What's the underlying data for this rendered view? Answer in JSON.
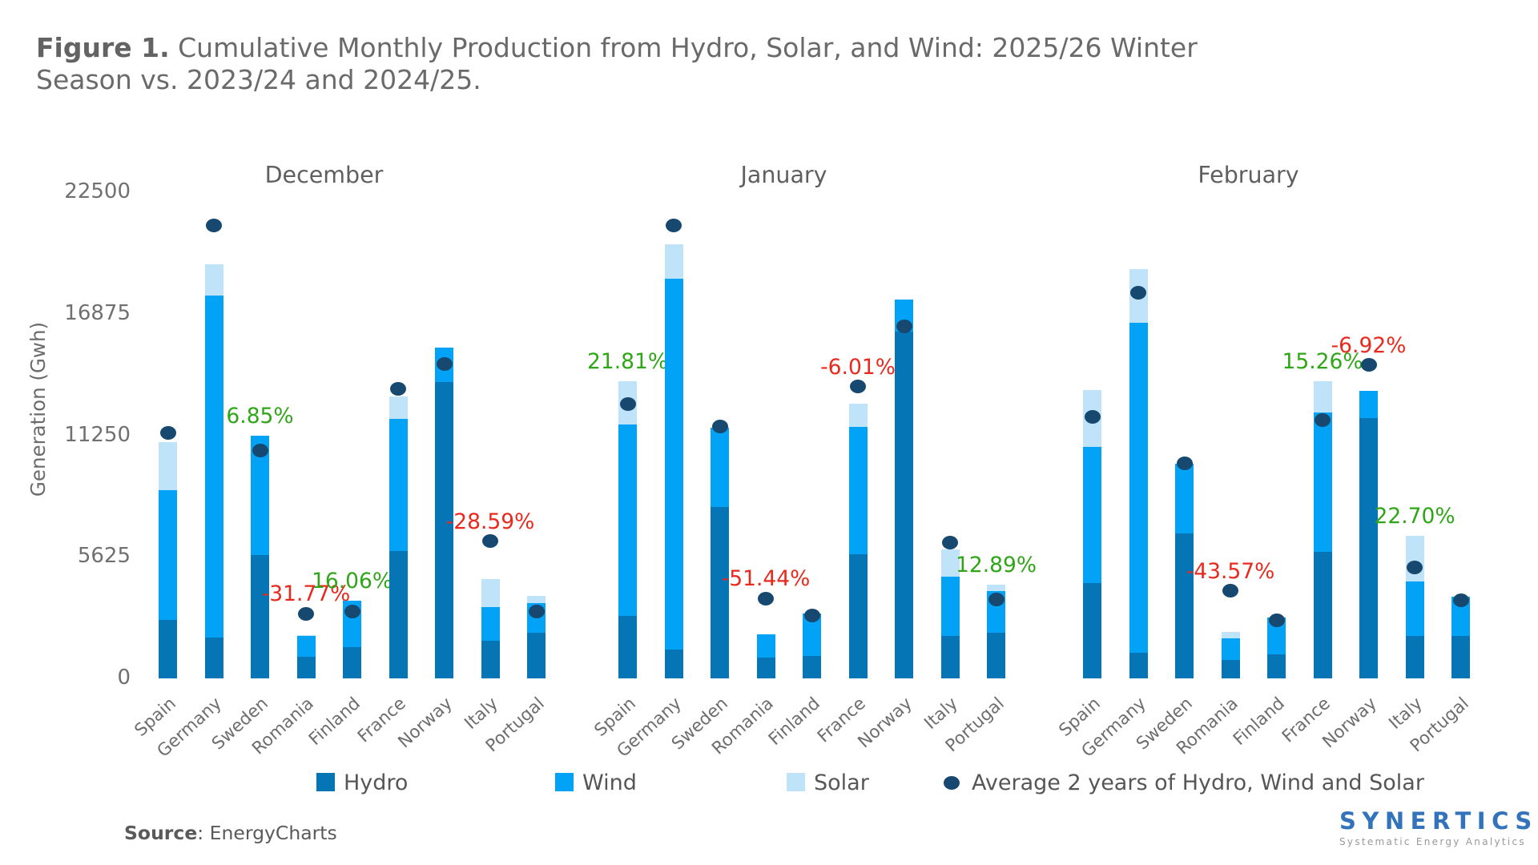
{
  "title": {
    "prefix": "Figure 1.",
    "rest": " Cumulative Monthly Production from Hydro, Solar, and Wind: 2025/26 Winter Season vs. 2023/24 and 2024/25."
  },
  "y_axis": {
    "label": "Generation (Gwh)",
    "ticks": [
      22500,
      16875,
      11250,
      5625,
      0
    ],
    "max": 22500
  },
  "legend": {
    "items": [
      {
        "swatch": "hydro",
        "label": "Hydro"
      },
      {
        "swatch": "wind",
        "label": "Wind"
      },
      {
        "swatch": "solar",
        "label": "Solar"
      },
      {
        "swatch": "dot",
        "label": "Average 2 years of Hydro, Wind and Solar"
      }
    ]
  },
  "source": {
    "label": "Source",
    "value": ": EnergyCharts"
  },
  "logo": {
    "name": "SYNERTICS",
    "tagline": "Systematic Energy Analytics"
  },
  "colors": {
    "hydro": "#0575b6",
    "wind": "#02a3f6",
    "solar": "#bfe3f9",
    "average_dot": "#17486f",
    "positive_label": "#2fa617",
    "negative_label": "#e9291d"
  },
  "chart_data": {
    "type": "bar",
    "stacked": true,
    "unit": "Gwh",
    "ylabel": "Generation (Gwh)",
    "ylim": [
      0,
      22500
    ],
    "grid": false,
    "legend_position": "bottom",
    "categories": [
      "Spain",
      "Germany",
      "Sweden",
      "Romania",
      "Finland",
      "France",
      "Norway",
      "Italy",
      "Portugal"
    ],
    "panels": [
      {
        "month": "December",
        "series": [
          {
            "name": "Hydro",
            "values": [
              2700,
              1900,
              5700,
              1000,
              1450,
              5900,
              13700,
              1730,
              2100
            ]
          },
          {
            "name": "Wind",
            "values": [
              6000,
              15800,
              5550,
              950,
              2150,
              6100,
              1600,
              1560,
              1370
            ]
          },
          {
            "name": "Solar",
            "values": [
              2250,
              1450,
              0,
              50,
              0,
              1050,
              0,
              1300,
              330
            ]
          }
        ],
        "average_dots": [
          11350,
          20950,
          10550,
          3000,
          3100,
          13400,
          14550,
          6350,
          3100
        ],
        "pct_labels": [
          null,
          null,
          "6.85%",
          "-31.77%",
          "16.06%",
          null,
          null,
          "-28.59%",
          null
        ]
      },
      {
        "month": "January",
        "series": [
          {
            "name": "Hydro",
            "values": [
              2900,
              1350,
              7950,
              950,
              1050,
              5750,
              16050,
              1950,
              2100
            ]
          },
          {
            "name": "Wind",
            "values": [
              8850,
              17150,
              3650,
              1100,
              1950,
              5900,
              1500,
              2750,
              1950
            ]
          },
          {
            "name": "Solar",
            "values": [
              2000,
              1600,
              0,
              0,
              0,
              1050,
              0,
              1250,
              300
            ]
          }
        ],
        "average_dots": [
          12700,
          20950,
          11650,
          3700,
          2900,
          13500,
          16300,
          6300,
          3650
        ],
        "pct_labels": [
          "21.81%",
          null,
          null,
          "-51.44%",
          null,
          "-6.01%",
          null,
          null,
          "12.89%"
        ]
      },
      {
        "month": "February",
        "series": [
          {
            "name": "Hydro",
            "values": [
              4400,
              1200,
              6700,
              870,
              1100,
              5850,
              12050,
              1950,
              1950
            ]
          },
          {
            "name": "Wind",
            "values": [
              6300,
              15250,
              3250,
              980,
              1700,
              6450,
              1250,
              2550,
              1830
            ]
          },
          {
            "name": "Solar",
            "values": [
              2650,
              2500,
              0,
              300,
              0,
              1450,
              0,
              2100,
              0
            ]
          }
        ],
        "average_dots": [
          12100,
          17850,
          9950,
          4050,
          2700,
          11950,
          14500,
          5150,
          3600
        ],
        "pct_labels": [
          null,
          null,
          null,
          "-43.57%",
          null,
          "15.26%",
          "-6.92%",
          "22.70%",
          null
        ]
      }
    ]
  }
}
